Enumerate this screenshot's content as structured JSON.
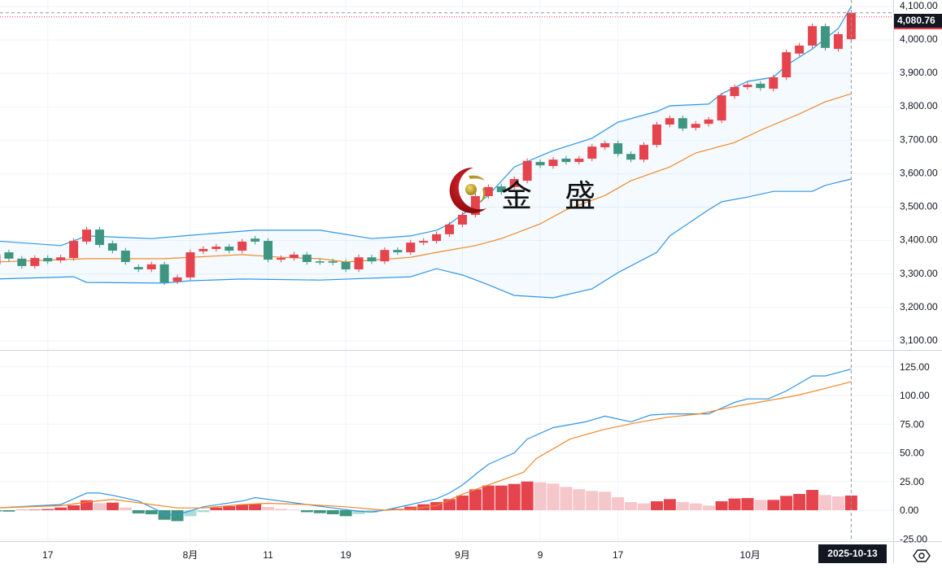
{
  "instrument_price": {
    "last": 4080.76,
    "last_label": "4,080.76"
  },
  "colors": {
    "up": "#e5444d",
    "down": "#3f9680",
    "up_light": "#f5c6ca",
    "down_light": "#a9dcd6",
    "band": "#2f95e6",
    "ma": "#f0892a",
    "dif": "#2f95e6",
    "dea": "#f0892a"
  },
  "price_axis": {
    "ticks": [
      3100,
      3200,
      3300,
      3400,
      3500,
      3600,
      3700,
      3800,
      3900,
      4000,
      4100
    ],
    "labels": [
      "3,100.00",
      "3,200.00",
      "3,300.00",
      "3,400.00",
      "3,500.00",
      "3,600.00",
      "3,700.00",
      "3,800.00",
      "3,900.00",
      "4,000.00",
      "4,100.00"
    ]
  },
  "macd_axis": {
    "ticks": [
      -25,
      0,
      25,
      50,
      75,
      100,
      125
    ],
    "labels": [
      "-25.00",
      "0.00",
      "25.00",
      "50.00",
      "75.00",
      "100.00",
      "125.00"
    ]
  },
  "time_axis": {
    "labels": [
      {
        "text": "17",
        "candle_index": 4
      },
      {
        "text": "8月",
        "candle_index": 15
      },
      {
        "text": "11",
        "candle_index": 21
      },
      {
        "text": "19",
        "candle_index": 27
      },
      {
        "text": "9月",
        "candle_index": 36
      },
      {
        "text": "9",
        "candle_index": 42
      },
      {
        "text": "17",
        "candle_index": 48
      },
      {
        "text": "10月",
        "candle_index": 58.2
      }
    ],
    "cursor_date": "2025-10-13"
  },
  "watermark": {
    "text": "金 盛"
  },
  "settings_icon": "settings-hexagon-icon",
  "chart_data": {
    "type": "candlestick",
    "ohlc_open_close": [
      [
        3329,
        3358
      ],
      [
        3365,
        3346
      ],
      [
        3346,
        3324
      ],
      [
        3324,
        3348
      ],
      [
        3348,
        3338
      ],
      [
        3341,
        3350
      ],
      [
        3348,
        3399
      ],
      [
        3397,
        3433
      ],
      [
        3433,
        3387
      ],
      [
        3392,
        3370
      ],
      [
        3370,
        3336
      ],
      [
        3321,
        3314
      ],
      [
        3314,
        3329
      ],
      [
        3329,
        3275
      ],
      [
        3278,
        3290
      ],
      [
        3290,
        3365
      ],
      [
        3368,
        3375
      ],
      [
        3375,
        3382
      ],
      [
        3382,
        3370
      ],
      [
        3370,
        3397
      ],
      [
        3406,
        3397
      ],
      [
        3399,
        3343
      ],
      [
        3343,
        3348
      ],
      [
        3348,
        3358
      ],
      [
        3358,
        3336
      ],
      [
        3338,
        3336
      ],
      [
        3338,
        3334
      ],
      [
        3336,
        3314
      ],
      [
        3314,
        3350
      ],
      [
        3350,
        3338
      ],
      [
        3338,
        3372
      ],
      [
        3372,
        3365
      ],
      [
        3365,
        3394
      ],
      [
        3394,
        3399
      ],
      [
        3399,
        3419
      ],
      [
        3419,
        3448
      ],
      [
        3448,
        3477
      ],
      [
        3477,
        3533
      ],
      [
        3533,
        3560
      ],
      [
        3562,
        3545
      ],
      [
        3560,
        3584
      ],
      [
        3579,
        3638
      ],
      [
        3635,
        3625
      ],
      [
        3623,
        3642
      ],
      [
        3645,
        3635
      ],
      [
        3635,
        3645
      ],
      [
        3645,
        3681
      ],
      [
        3679,
        3691
      ],
      [
        3691,
        3659
      ],
      [
        3659,
        3642
      ],
      [
        3642,
        3686
      ],
      [
        3686,
        3747
      ],
      [
        3747,
        3766
      ],
      [
        3766,
        3735
      ],
      [
        3737,
        3749
      ],
      [
        3749,
        3762
      ],
      [
        3759,
        3834
      ],
      [
        3832,
        3859
      ],
      [
        3859,
        3866
      ],
      [
        3869,
        3856
      ],
      [
        3854,
        3888
      ],
      [
        3888,
        3963
      ],
      [
        3959,
        3983
      ],
      [
        3983,
        4041
      ],
      [
        4041,
        3976
      ],
      [
        3973,
        4017
      ],
      [
        4002,
        4080.76
      ]
    ],
    "bollinger": {
      "upper": [
        [
          0,
          3399
        ],
        [
          5,
          3385
        ],
        [
          7,
          3414
        ],
        [
          12,
          3406
        ],
        [
          15,
          3416
        ],
        [
          20,
          3431
        ],
        [
          25,
          3431
        ],
        [
          29,
          3406
        ],
        [
          32,
          3414
        ],
        [
          34,
          3431
        ],
        [
          35,
          3450
        ],
        [
          38,
          3535
        ],
        [
          40,
          3620
        ],
        [
          43,
          3669
        ],
        [
          46,
          3706
        ],
        [
          48,
          3754
        ],
        [
          51,
          3786
        ],
        [
          52,
          3803
        ],
        [
          55,
          3808
        ],
        [
          56,
          3839
        ],
        [
          58,
          3876
        ],
        [
          60,
          3888
        ],
        [
          61,
          3924
        ],
        [
          63,
          3973
        ],
        [
          65,
          4034
        ],
        [
          66,
          4100
        ]
      ],
      "middle": [
        [
          0,
          3336
        ],
        [
          7,
          3346
        ],
        [
          13,
          3346
        ],
        [
          19,
          3358
        ],
        [
          22,
          3350
        ],
        [
          25,
          3346
        ],
        [
          27,
          3336
        ],
        [
          29,
          3341
        ],
        [
          32,
          3350
        ],
        [
          34,
          3365
        ],
        [
          37,
          3385
        ],
        [
          39,
          3406
        ],
        [
          42,
          3450
        ],
        [
          44,
          3492
        ],
        [
          47,
          3535
        ],
        [
          49,
          3579
        ],
        [
          52,
          3620
        ],
        [
          54,
          3662
        ],
        [
          57,
          3693
        ],
        [
          59,
          3730
        ],
        [
          62,
          3779
        ],
        [
          64,
          3815
        ],
        [
          66,
          3839
        ]
      ],
      "lower": [
        [
          0,
          3285
        ],
        [
          6,
          3292
        ],
        [
          7,
          3275
        ],
        [
          13,
          3273
        ],
        [
          15,
          3280
        ],
        [
          19,
          3285
        ],
        [
          25,
          3282
        ],
        [
          32,
          3292
        ],
        [
          34,
          3316
        ],
        [
          36,
          3297
        ],
        [
          38,
          3268
        ],
        [
          40,
          3236
        ],
        [
          43,
          3229
        ],
        [
          46,
          3256
        ],
        [
          48,
          3304
        ],
        [
          51,
          3365
        ],
        [
          52,
          3414
        ],
        [
          55,
          3492
        ],
        [
          56,
          3516
        ],
        [
          58,
          3530
        ],
        [
          60,
          3547
        ],
        [
          61,
          3547
        ],
        [
          63,
          3547
        ],
        [
          64,
          3565
        ],
        [
          66,
          3584
        ]
      ]
    },
    "macd": {
      "histogram": [
        -1.0,
        -1.2,
        0.3,
        0.5,
        1.0,
        2.4,
        4.3,
        8.7,
        6.1,
        6.6,
        2.4,
        -2.8,
        -3.5,
        -8.3,
        -9.5,
        -5.2,
        -1.7,
        2.4,
        3.5,
        4.7,
        5.4,
        2.8,
        1.2,
        0.5,
        -1.7,
        -2.6,
        -3.5,
        -5.2,
        -3.3,
        -2.1,
        0.3,
        1.2,
        3.1,
        5.2,
        7.1,
        9.7,
        12.8,
        18.2,
        21.5,
        21.5,
        22.9,
        25.0,
        24.3,
        23.2,
        20.3,
        18.2,
        16.8,
        16.1,
        11.3,
        7.1,
        5.9,
        7.8,
        9.7,
        7.1,
        5.9,
        4.0,
        7.8,
        10.2,
        10.6,
        9.0,
        9.0,
        12.5,
        14.2,
        17.7,
        13.2,
        12.1,
        12.8
      ],
      "dif": [
        [
          0,
          2
        ],
        [
          5,
          5
        ],
        [
          7,
          15
        ],
        [
          8,
          15
        ],
        [
          9,
          13
        ],
        [
          11,
          8
        ],
        [
          13,
          -3
        ],
        [
          13.8,
          -4.7
        ],
        [
          16,
          3
        ],
        [
          19,
          8
        ],
        [
          20,
          11
        ],
        [
          22,
          8
        ],
        [
          24,
          5
        ],
        [
          26,
          2
        ],
        [
          28,
          -1
        ],
        [
          29,
          -1.5
        ],
        [
          30,
          0
        ],
        [
          32,
          5
        ],
        [
          34,
          10
        ],
        [
          35,
          15
        ],
        [
          36,
          22
        ],
        [
          37.2,
          33
        ],
        [
          38,
          40
        ],
        [
          40,
          50
        ],
        [
          41,
          62
        ],
        [
          43,
          72
        ],
        [
          45.5,
          77
        ],
        [
          47,
          82
        ],
        [
          49,
          77
        ],
        [
          50.5,
          83
        ],
        [
          52,
          84
        ],
        [
          55,
          84
        ],
        [
          57,
          94
        ],
        [
          58,
          97
        ],
        [
          59.6,
          97
        ],
        [
          61,
          104
        ],
        [
          63,
          117
        ],
        [
          64,
          117
        ],
        [
          66,
          123
        ]
      ],
      "dea": [
        [
          0,
          2
        ],
        [
          5,
          4
        ],
        [
          7,
          7
        ],
        [
          9,
          9.5
        ],
        [
          12,
          5
        ],
        [
          14,
          2
        ],
        [
          16,
          2
        ],
        [
          19,
          5
        ],
        [
          21,
          6
        ],
        [
          24,
          5
        ],
        [
          27,
          3
        ],
        [
          30,
          0
        ],
        [
          32,
          1
        ],
        [
          34,
          4
        ],
        [
          36,
          14
        ],
        [
          38,
          22
        ],
        [
          40.7,
          33
        ],
        [
          41.7,
          45
        ],
        [
          44.3,
          62
        ],
        [
          46.8,
          70
        ],
        [
          49.3,
          76
        ],
        [
          51.8,
          81
        ],
        [
          54.3,
          84
        ],
        [
          56.8,
          90
        ],
        [
          59.3,
          95
        ],
        [
          61.8,
          100
        ],
        [
          64.3,
          107
        ],
        [
          66,
          112
        ]
      ]
    },
    "price_ylim": [
      3100,
      4100
    ],
    "macd_ylim": [
      -25,
      125
    ]
  }
}
